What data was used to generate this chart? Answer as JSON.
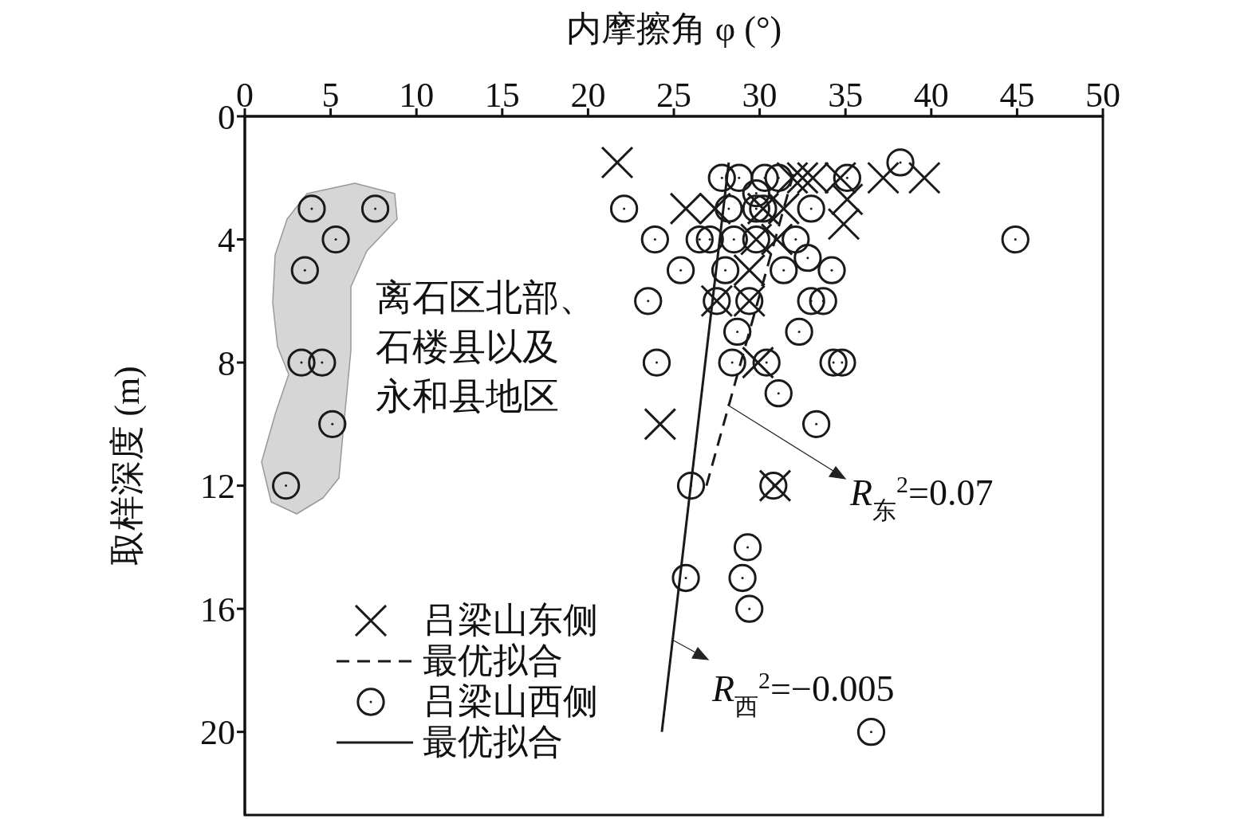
{
  "chart_data": {
    "type": "scatter",
    "xlabel": "内摩擦角 φ (°)",
    "ylabel": "取样深度 (m)",
    "xlim": [
      0,
      50
    ],
    "xticks": [
      0,
      5,
      10,
      15,
      20,
      25,
      30,
      35,
      40,
      45,
      50
    ],
    "ylim": [
      22.7,
      0
    ],
    "yticks": [
      0,
      4,
      8,
      12,
      16,
      20
    ],
    "legend": "bottom left",
    "annotations": [
      "离石区北部、石楼县以及永和县地区",
      "R$_{东}$$^{2}$=0.07",
      "R$_{西}$$^{2}$=−0.005"
    ],
    "series": [
      {
        "name": "吕梁山东侧",
        "marker": "cross",
        "color": "#1a1a1a",
        "x": [
          21.7,
          31.9,
          32.5,
          33.1,
          34.7,
          37.2,
          39.6,
          25.7,
          27.4,
          30.2,
          31.4,
          35.1,
          34.9,
          29.8,
          31.0,
          29.4,
          27.5,
          29.4,
          29.9,
          24.2,
          30.9
        ],
        "values": [
          1.5,
          2,
          2,
          2,
          2,
          2,
          2,
          3,
          3,
          3,
          3,
          2.7,
          3.5,
          4,
          4,
          5,
          6,
          6,
          8,
          10,
          12
        ]
      },
      {
        "name": "最优拟合",
        "type": "line",
        "line_style": "dashed",
        "marker": "none",
        "color": "#1a1a1a",
        "x": [
          26.9,
          32.0
        ],
        "values": [
          12,
          1.8
        ]
      },
      {
        "name": "吕梁山西侧",
        "marker": "circle",
        "color": "#1a1a1a",
        "x": [
          3.9,
          7.6,
          5.3,
          3.5,
          3.3,
          4.5,
          5.1,
          2.4,
          27.8,
          28.8,
          30.3,
          31.1,
          35.1,
          38.2,
          29.8,
          22.1,
          28.2,
          29.8,
          30.2,
          33.0,
          23.9,
          26.5,
          27.1,
          28.5,
          29.8,
          32.1,
          44.9,
          32.8,
          25.4,
          28.0,
          31.4,
          34.2,
          23.5,
          27.5,
          29.4,
          33.0,
          33.7,
          28.7,
          32.3,
          24.0,
          28.4,
          30.4,
          34.3,
          34.8,
          31.1,
          33.3,
          26.0,
          30.8,
          29.3,
          29.0,
          25.7,
          29.4,
          36.5
        ],
        "values": [
          3,
          3,
          4,
          5,
          8,
          8,
          10,
          12,
          2,
          2,
          2,
          2,
          2,
          1.5,
          2.5,
          3,
          3,
          3,
          3,
          3,
          4,
          4,
          4,
          4,
          4,
          4,
          4,
          4.6,
          5,
          5,
          5,
          5,
          6,
          6,
          6,
          6,
          6,
          7,
          7,
          8,
          8,
          8,
          8,
          8,
          9,
          10,
          12,
          12,
          14,
          15,
          15,
          16,
          20
        ]
      },
      {
        "name": "最优拟合",
        "type": "line",
        "line_style": "solid",
        "marker": "none",
        "color": "#1a1a1a",
        "x": [
          24.3,
          28.2
        ],
        "values": [
          20,
          1.5
        ]
      }
    ]
  }
}
